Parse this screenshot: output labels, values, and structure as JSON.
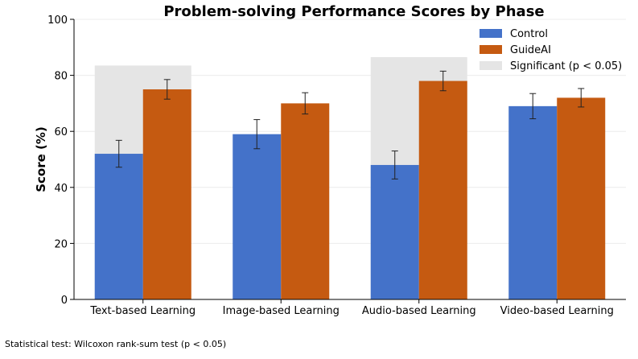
{
  "chart_data": {
    "type": "bar",
    "title": "Problem-solving Performance Scores by Phase",
    "xlabel": "",
    "ylabel": "Score (%)",
    "ylim": [
      0,
      100
    ],
    "yticks": [
      0,
      20,
      40,
      60,
      80,
      100
    ],
    "grid": true,
    "legend_position": "top-right",
    "categories": [
      "Text-based Learning",
      "Image-based Learning",
      "Audio-based Learning",
      "Video-based Learning"
    ],
    "series": [
      {
        "name": "Control",
        "color": "#4472c9",
        "values": [
          52,
          59,
          48,
          69
        ],
        "errors": [
          4.8,
          5.2,
          5.0,
          4.5
        ]
      },
      {
        "name": "GuideAI",
        "color": "#c55a11",
        "values": [
          75,
          70,
          78,
          72
        ],
        "errors": [
          3.5,
          3.8,
          3.5,
          3.3
        ]
      }
    ],
    "significance": {
      "label": "Significant (p < 0.05)",
      "color": "#e5e5e5",
      "categories": [
        "Text-based Learning",
        "Audio-based Learning"
      ],
      "top": [
        83.5,
        86.5
      ]
    }
  },
  "footnote": "Statistical test: Wilcoxon rank-sum test (p < 0.05)"
}
